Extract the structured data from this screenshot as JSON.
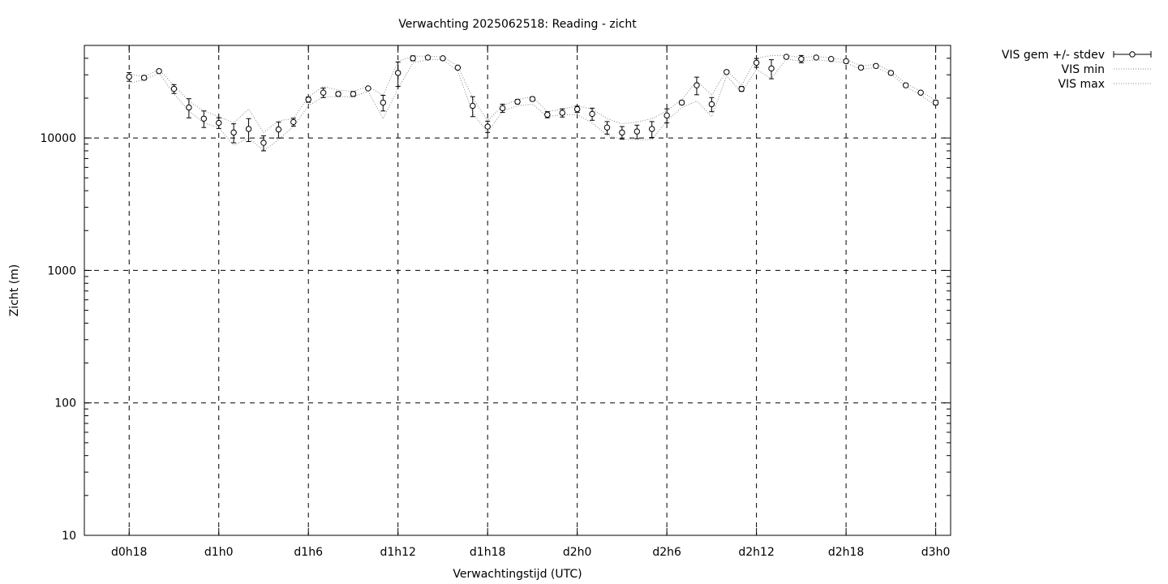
{
  "chart_data": {
    "type": "line",
    "title": "Verwachting 2025062518: Reading - zicht",
    "xlabel": "Verwachtingstijd (UTC)",
    "ylabel": "Zicht (m)",
    "y_scale": "log",
    "ylim": [
      10,
      50000
    ],
    "y_ticks": [
      10,
      100,
      1000,
      10000
    ],
    "y_tick_labels": [
      "10",
      "100",
      "1000",
      "10000"
    ],
    "x_unit": "hours",
    "xlim": [
      15,
      73
    ],
    "x_ticks": [
      18,
      24,
      30,
      36,
      42,
      48,
      54,
      60,
      66,
      72
    ],
    "x_tick_labels": [
      "d0h18",
      "d1h0",
      "d1h6",
      "d1h12",
      "d1h18",
      "d2h0",
      "d2h6",
      "d2h12",
      "d2h18",
      "d3h0"
    ],
    "grid": "dashed",
    "legend_position": "outside-top-right",
    "x": [
      18,
      19,
      20,
      21,
      22,
      23,
      24,
      25,
      26,
      27,
      28,
      29,
      30,
      31,
      32,
      33,
      34,
      35,
      36,
      37,
      38,
      39,
      40,
      41,
      42,
      43,
      44,
      45,
      46,
      47,
      48,
      49,
      50,
      51,
      52,
      53,
      54,
      55,
      56,
      57,
      58,
      59,
      60,
      61,
      62,
      63,
      64,
      65,
      66,
      67,
      68,
      69,
      70,
      71,
      72
    ],
    "series": [
      {
        "name": "VIS gem +/- stdev",
        "style": "points-errorbars",
        "mean": [
          29000,
          28500,
          32000,
          23500,
          17000,
          14000,
          13000,
          11000,
          11700,
          9200,
          11600,
          13200,
          19500,
          22000,
          21500,
          21500,
          23700,
          18500,
          31000,
          40000,
          40500,
          40000,
          34000,
          17500,
          12200,
          16800,
          18800,
          19700,
          15000,
          15500,
          16500,
          15200,
          12000,
          11000,
          11200,
          11700,
          14800,
          18500,
          25000,
          18000,
          31500,
          23500,
          37000,
          33500,
          41000,
          39500,
          40500,
          39500,
          38000,
          34000,
          35000,
          31000,
          25000,
          22000,
          18500
        ],
        "stdev": [
          2200,
          1000,
          900,
          1800,
          2800,
          2000,
          1200,
          1800,
          2300,
          1200,
          1600,
          900,
          900,
          1800,
          800,
          900,
          500,
          2500,
          6500,
          1700,
          700,
          800,
          500,
          3000,
          1200,
          1200,
          700,
          700,
          800,
          1100,
          900,
          1600,
          1300,
          1200,
          1300,
          1600,
          1800,
          600,
          3800,
          2200,
          800,
          1000,
          2800,
          5500,
          900,
          2500,
          700,
          700,
          1000,
          700,
          700,
          900,
          700,
          500,
          700
        ]
      },
      {
        "name": "VIS min",
        "style": "dotted",
        "values": [
          26000,
          27500,
          31000,
          21500,
          16000,
          13000,
          12000,
          8800,
          10000,
          8000,
          9700,
          12200,
          17500,
          20500,
          20500,
          20500,
          22500,
          14000,
          23500,
          37000,
          39000,
          39000,
          32000,
          15500,
          11000,
          16000,
          17500,
          18000,
          14500,
          15000,
          15000,
          13000,
          10500,
          9800,
          9700,
          9700,
          13500,
          17000,
          19000,
          14500,
          29500,
          22000,
          33000,
          28000,
          39500,
          38000,
          39000,
          38000,
          37000,
          33000,
          34000,
          30500,
          24500,
          21000,
          17500
        ]
      },
      {
        "name": "VIS max",
        "style": "dotted",
        "values": [
          30500,
          29000,
          32800,
          25000,
          19000,
          16000,
          14500,
          13000,
          16500,
          11000,
          13500,
          14000,
          20500,
          24500,
          23000,
          22500,
          24500,
          21000,
          38000,
          41500,
          41500,
          41000,
          35000,
          20000,
          13500,
          17500,
          19500,
          20500,
          15800,
          16500,
          17500,
          16500,
          14000,
          12800,
          13200,
          14000,
          16000,
          19500,
          27000,
          21000,
          32500,
          25000,
          40000,
          42000,
          42000,
          40500,
          41500,
          40000,
          39000,
          35000,
          36000,
          32000,
          25800,
          22500,
          19200
        ]
      }
    ]
  }
}
